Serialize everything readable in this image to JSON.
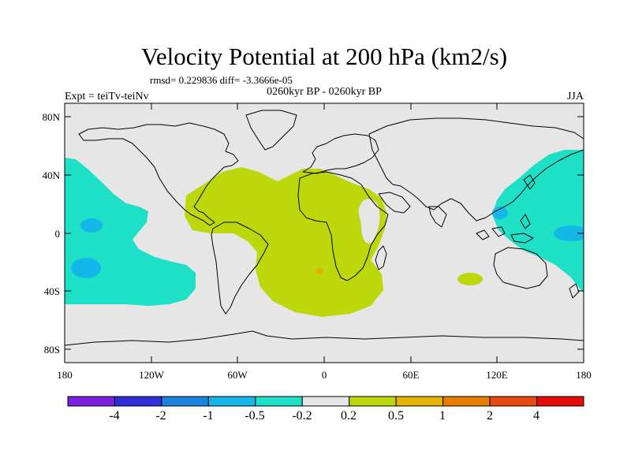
{
  "title": "Velocity Potential at 200 hPa (km2/s)",
  "stats_line": "rmsd= 0.229836 diff= -3.3666e-05",
  "left_label": "Expt = teiTv-teiNv",
  "center_label": "0260kyr BP - 0260kyr BP",
  "season_label": "JJA",
  "lat_ticks": [
    "80N",
    "40N",
    "0",
    "40S",
    "80S"
  ],
  "lon_ticks": [
    "180",
    "120W",
    "60W",
    "0",
    "60E",
    "120E",
    "180"
  ],
  "colorbar": {
    "labels": [
      "-4",
      "-2",
      "-1",
      "-0.5",
      "-0.2",
      "0.2",
      "0.5",
      "1",
      "2",
      "4"
    ],
    "colors": [
      "#7a1fe0",
      "#2f2fd6",
      "#1e82e0",
      "#14b8e8",
      "#1ee0c6",
      "#e6e6e6",
      "#bcd80a",
      "#e6b200",
      "#e67f00",
      "#e64a10",
      "#e60a0a"
    ]
  },
  "colors": {
    "land_bg": "#e6e6e6",
    "neg_light": "#1ee0c6",
    "neg_mid": "#14b8e8",
    "pos_light": "#bcd80a",
    "pos_mid": "#e6b200"
  }
}
